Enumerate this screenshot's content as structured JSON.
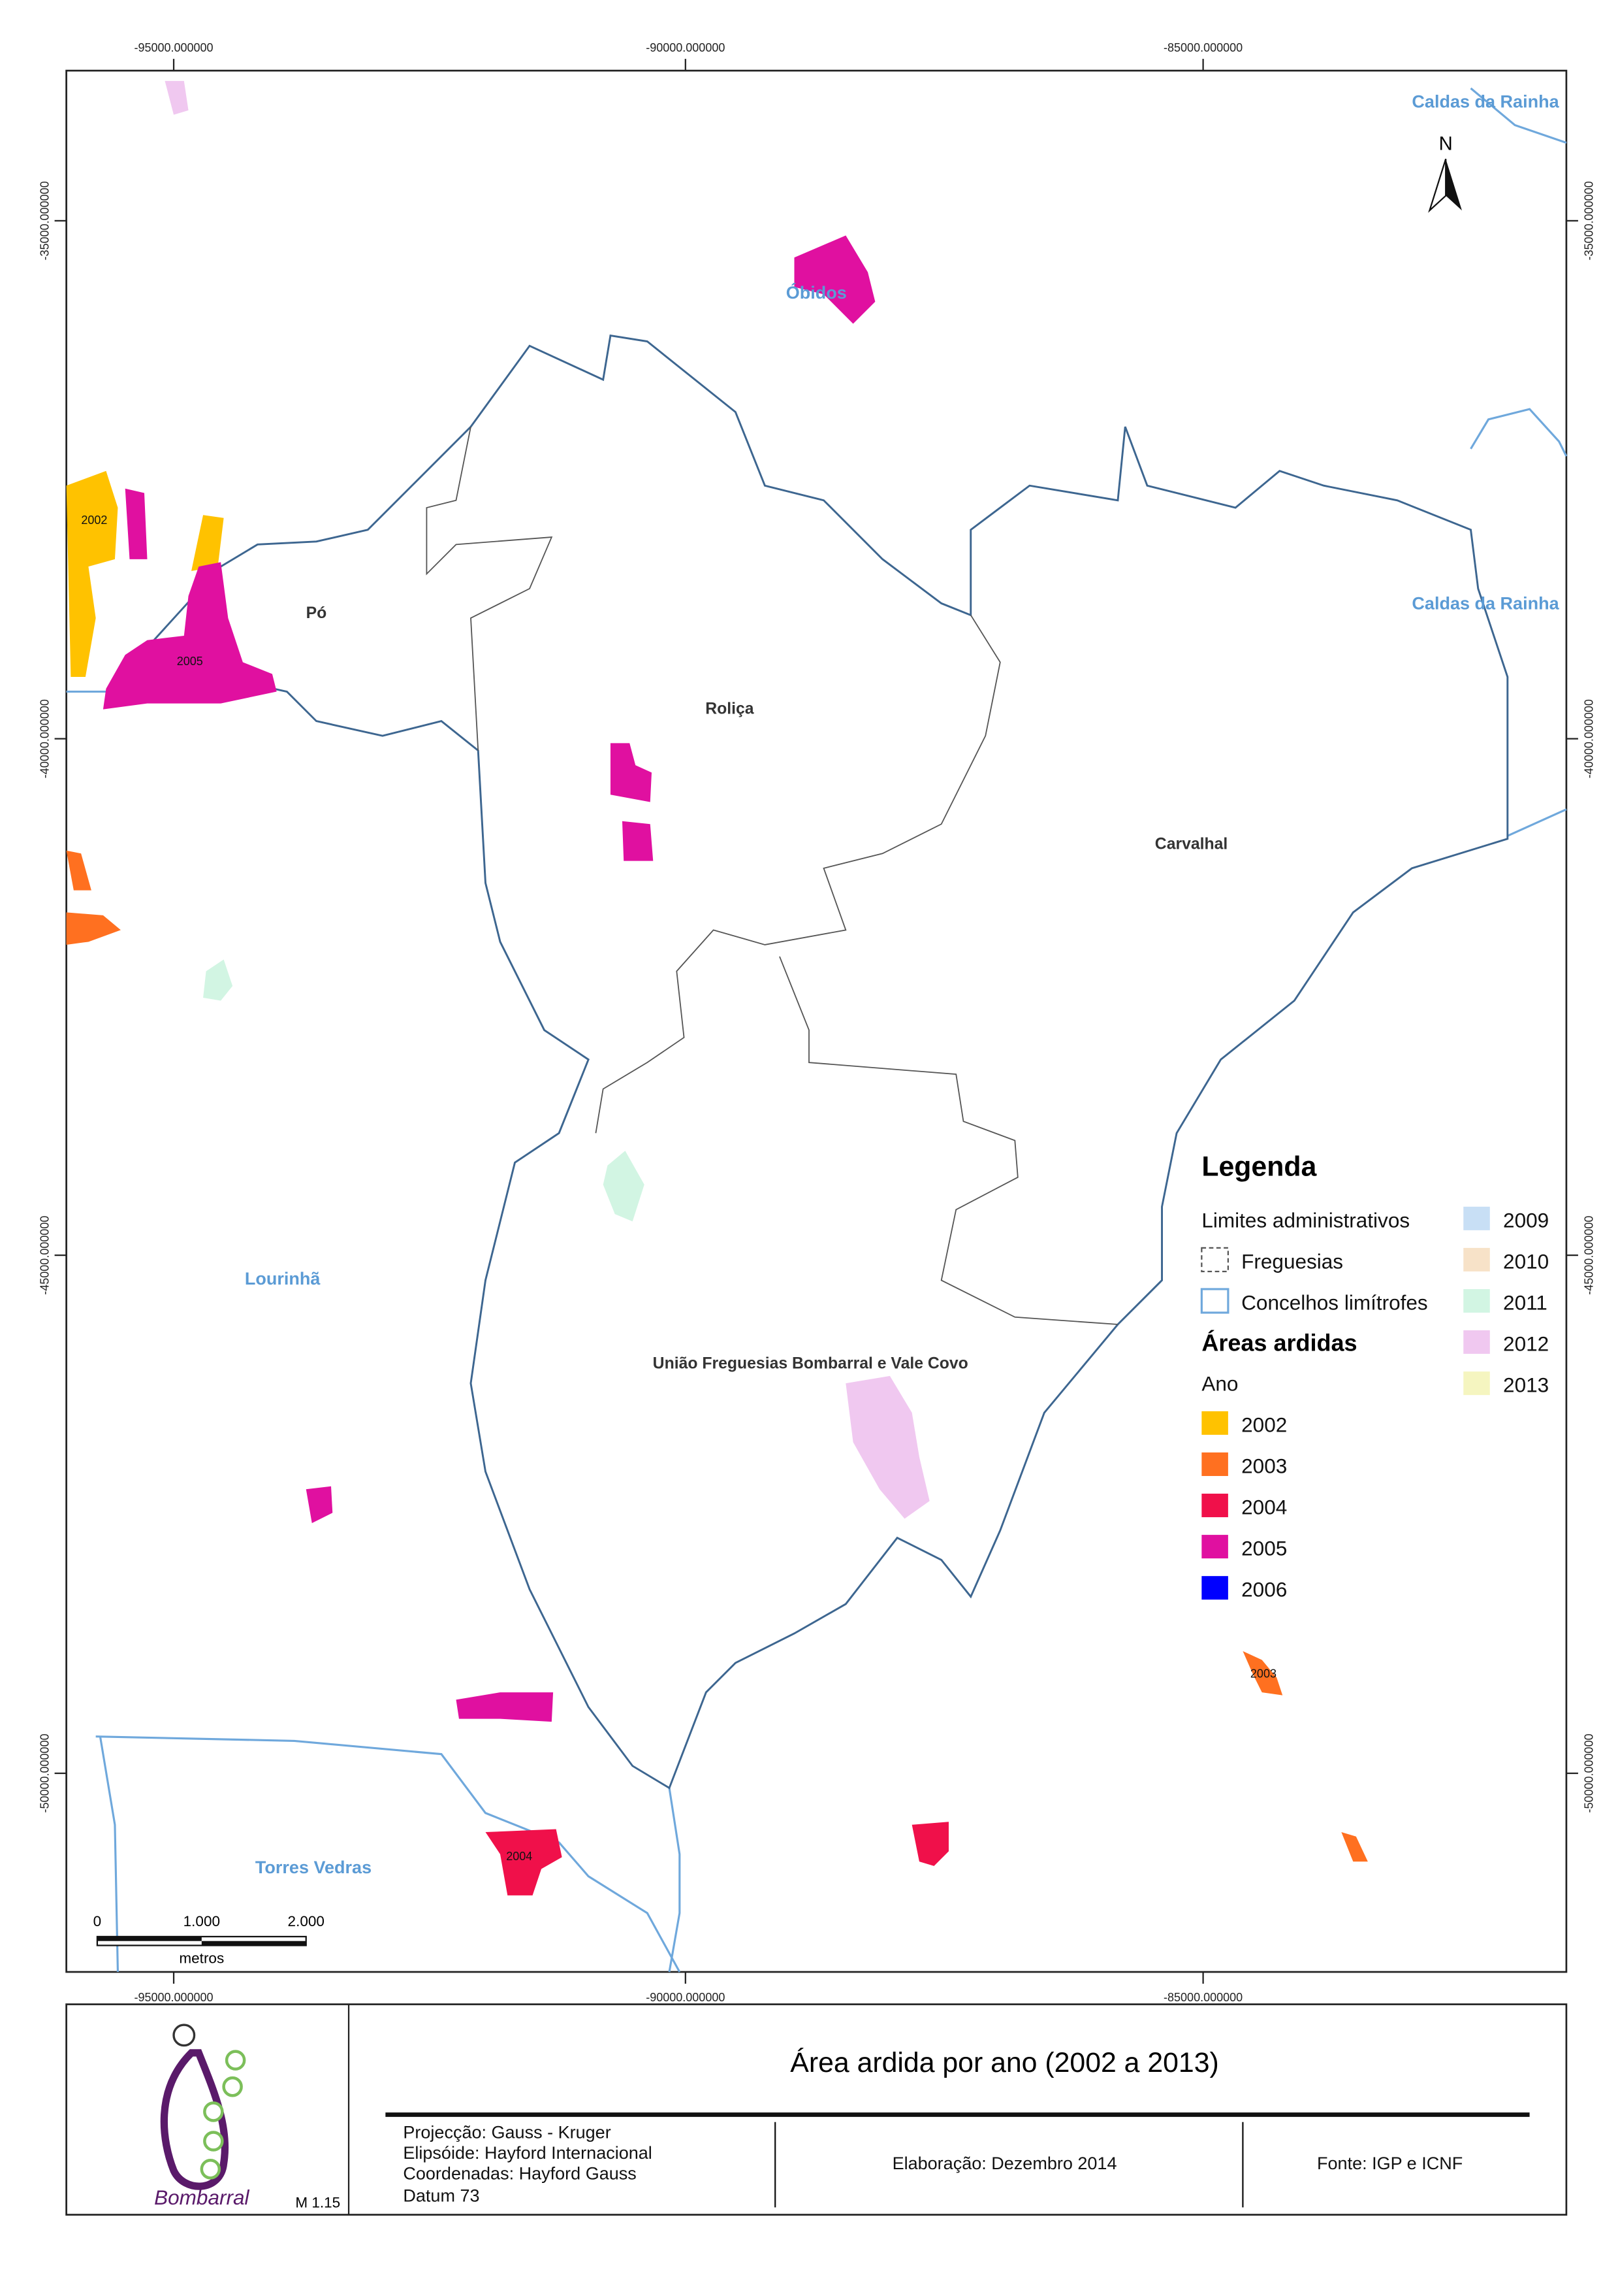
{
  "grid": {
    "x_labels": [
      "-95000.000000",
      "-90000.000000",
      "-85000.000000"
    ],
    "y_labels": [
      "-35000.000000",
      "-40000.000000",
      "-45000.000000",
      "-50000.000000"
    ]
  },
  "places": {
    "caldas_top": "Caldas da Rainha",
    "caldas_mid": "Caldas da Rainha",
    "obidos": "Óbidos",
    "po": "Pó",
    "rolica": "Roliça",
    "carvalhal": "Carvalhal",
    "lourinha": "Lourinhã",
    "uniao": "União Freguesias Bombarral e Vale Covo",
    "torres_vedras": "Torres Vedras"
  },
  "fire_labels": [
    "2002",
    "2005",
    "2003",
    "2004"
  ],
  "north": "N",
  "scale_bar": {
    "ticks": [
      "0",
      "1.000",
      "2.000"
    ],
    "unit": "metros"
  },
  "legend": {
    "title": "Legenda",
    "admin_heading": "Limites administrativos",
    "freguesias": "Freguesias",
    "concelhos": "Concelhos limítrofes",
    "burn_heading": "Áreas ardidas",
    "year_heading": "Ano",
    "years": [
      "2002",
      "2003",
      "2004",
      "2005",
      "2006",
      "2009",
      "2010",
      "2011",
      "2012",
      "2013"
    ]
  },
  "footer": {
    "logo_text": "Bombarral",
    "version": "M 1.15",
    "title": "Área ardida por ano (2002 a 2013)",
    "projection": [
      "Projecção: Gauss - Kruger",
      "Elipsóide: Hayford Internacional",
      "Coordenadas: Hayford Gauss",
      "Datum 73"
    ],
    "elaboration": "Elaboração: Dezembro 2014",
    "source": "Fonte: IGP e ICNF"
  }
}
